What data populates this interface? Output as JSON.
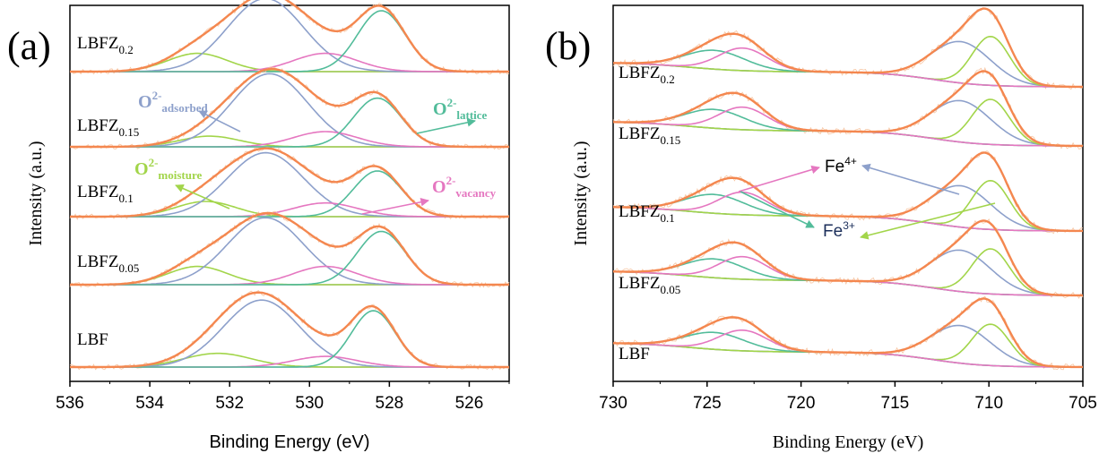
{
  "chart_data": [
    {
      "panel_label": "(a)",
      "type": "line",
      "xlabel": "Binding Energy (eV)",
      "ylabel": "Intensity (a.u.)",
      "xlim": [
        536,
        525
      ],
      "x_reversed": true,
      "xticks": [
        536,
        534,
        532,
        530,
        528,
        526
      ],
      "colors": {
        "total": "#F4874F",
        "adsorbed": "#8DA0CB",
        "lattice": "#52BC9A",
        "moisture": "#A2D54A",
        "vacancy": "#E577C0",
        "baseline": "#5A2C72"
      },
      "samples": [
        {
          "label": "LBFZ",
          "sub": "0.2",
          "peaks": {
            "moisture": {
              "center": 532.8,
              "height": 0.12,
              "width": 0.75
            },
            "adsorbed": {
              "center": 531.1,
              "height": 0.48,
              "width": 0.95
            },
            "vacancy": {
              "center": 529.6,
              "height": 0.12,
              "width": 0.8
            },
            "lattice": {
              "center": 528.2,
              "height": 0.4,
              "width": 0.6
            }
          }
        },
        {
          "label": "LBFZ",
          "sub": "0.15",
          "peaks": {
            "moisture": {
              "center": 532.5,
              "height": 0.07,
              "width": 0.75
            },
            "adsorbed": {
              "center": 531.0,
              "height": 0.48,
              "width": 0.95
            },
            "vacancy": {
              "center": 529.6,
              "height": 0.1,
              "width": 0.8
            },
            "lattice": {
              "center": 528.3,
              "height": 0.32,
              "width": 0.6
            }
          }
        },
        {
          "label": "LBFZ",
          "sub": "0.1",
          "peaks": {
            "moisture": {
              "center": 532.6,
              "height": 0.1,
              "width": 0.75
            },
            "adsorbed": {
              "center": 531.1,
              "height": 0.42,
              "width": 0.95
            },
            "vacancy": {
              "center": 529.6,
              "height": 0.09,
              "width": 0.8
            },
            "lattice": {
              "center": 528.3,
              "height": 0.3,
              "width": 0.6
            }
          }
        },
        {
          "label": "LBFZ",
          "sub": "0.05",
          "peaks": {
            "moisture": {
              "center": 532.8,
              "height": 0.12,
              "width": 0.75
            },
            "adsorbed": {
              "center": 531.1,
              "height": 0.44,
              "width": 0.95
            },
            "vacancy": {
              "center": 529.6,
              "height": 0.12,
              "width": 0.8
            },
            "lattice": {
              "center": 528.2,
              "height": 0.35,
              "width": 0.6
            }
          }
        },
        {
          "label": "LBF",
          "sub": "",
          "peaks": {
            "moisture": {
              "center": 532.3,
              "height": 0.09,
              "width": 0.85
            },
            "adsorbed": {
              "center": 531.2,
              "height": 0.44,
              "width": 0.95
            },
            "vacancy": {
              "center": 529.6,
              "height": 0.07,
              "width": 0.8
            },
            "lattice": {
              "center": 528.4,
              "height": 0.37,
              "width": 0.55
            }
          }
        }
      ],
      "annotations": [
        {
          "id": "adsorbed",
          "base": "O",
          "sup": "2-",
          "sub": "adsorbed",
          "color": "#8DA0CB"
        },
        {
          "id": "lattice",
          "base": "O",
          "sup": "2-",
          "sub": "lattice",
          "color": "#52BC9A"
        },
        {
          "id": "moisture",
          "base": "O",
          "sup": "2-",
          "sub": "moisture",
          "color": "#A2D54A"
        },
        {
          "id": "vacancy",
          "base": "O",
          "sup": "2-",
          "sub": "vacancy",
          "color": "#E577C0"
        }
      ]
    },
    {
      "panel_label": "(b)",
      "type": "line",
      "xlabel": "Binding Energy (eV)",
      "ylabel": "Intensity (a.u.)",
      "xlim": [
        730,
        705
      ],
      "x_reversed": true,
      "xticks": [
        730,
        725,
        720,
        715,
        710,
        705
      ],
      "colors": {
        "total": "#F4874F",
        "fe4_a": "#8DA0CB",
        "fe3_a": "#A2D54A",
        "fe4_b": "#52BC9A",
        "fe3_b": "#E577C0",
        "baseline": "#1F5C3A"
      },
      "samples": [
        {
          "label": "LBFZ",
          "sub": "0.2",
          "peaks": {
            "fe4_a": {
              "center": 711.5,
              "height": 0.22,
              "width": 1.6
            },
            "fe3_a": {
              "center": 709.9,
              "height": 0.26,
              "width": 1.0
            },
            "fe4_b": {
              "center": 724.6,
              "height": 0.1,
              "width": 1.6
            },
            "fe3_b": {
              "center": 723.1,
              "height": 0.12,
              "width": 1.3
            }
          }
        },
        {
          "label": "LBFZ",
          "sub": "0.15",
          "peaks": {
            "fe4_a": {
              "center": 711.5,
              "height": 0.22,
              "width": 1.6
            },
            "fe3_a": {
              "center": 709.9,
              "height": 0.24,
              "width": 1.0
            },
            "fe4_b": {
              "center": 724.6,
              "height": 0.1,
              "width": 1.6
            },
            "fe3_b": {
              "center": 723.1,
              "height": 0.12,
              "width": 1.3
            }
          }
        },
        {
          "label": "LBFZ",
          "sub": "0.1",
          "peaks": {
            "fe4_a": {
              "center": 711.5,
              "height": 0.22,
              "width": 1.6
            },
            "fe3_a": {
              "center": 709.9,
              "height": 0.26,
              "width": 1.0
            },
            "fe4_b": {
              "center": 724.6,
              "height": 0.1,
              "width": 1.6
            },
            "fe3_b": {
              "center": 723.1,
              "height": 0.12,
              "width": 1.3
            }
          }
        },
        {
          "label": "LBFZ",
          "sub": "0.05",
          "peaks": {
            "fe4_a": {
              "center": 711.5,
              "height": 0.22,
              "width": 1.6
            },
            "fe3_a": {
              "center": 709.9,
              "height": 0.24,
              "width": 1.0
            },
            "fe4_b": {
              "center": 724.6,
              "height": 0.1,
              "width": 1.6
            },
            "fe3_b": {
              "center": 723.1,
              "height": 0.12,
              "width": 1.3
            }
          }
        },
        {
          "label": "LBF",
          "sub": "",
          "peaks": {
            "fe4_a": {
              "center": 711.5,
              "height": 0.2,
              "width": 1.6
            },
            "fe3_a": {
              "center": 709.9,
              "height": 0.22,
              "width": 1.0
            },
            "fe4_b": {
              "center": 724.6,
              "height": 0.09,
              "width": 1.6
            },
            "fe3_b": {
              "center": 723.1,
              "height": 0.11,
              "width": 1.3
            }
          }
        }
      ],
      "annotations": [
        {
          "id": "fe4",
          "base": "Fe",
          "sup": "4+"
        },
        {
          "id": "fe3",
          "base": "Fe",
          "sup": "3+"
        }
      ]
    }
  ]
}
